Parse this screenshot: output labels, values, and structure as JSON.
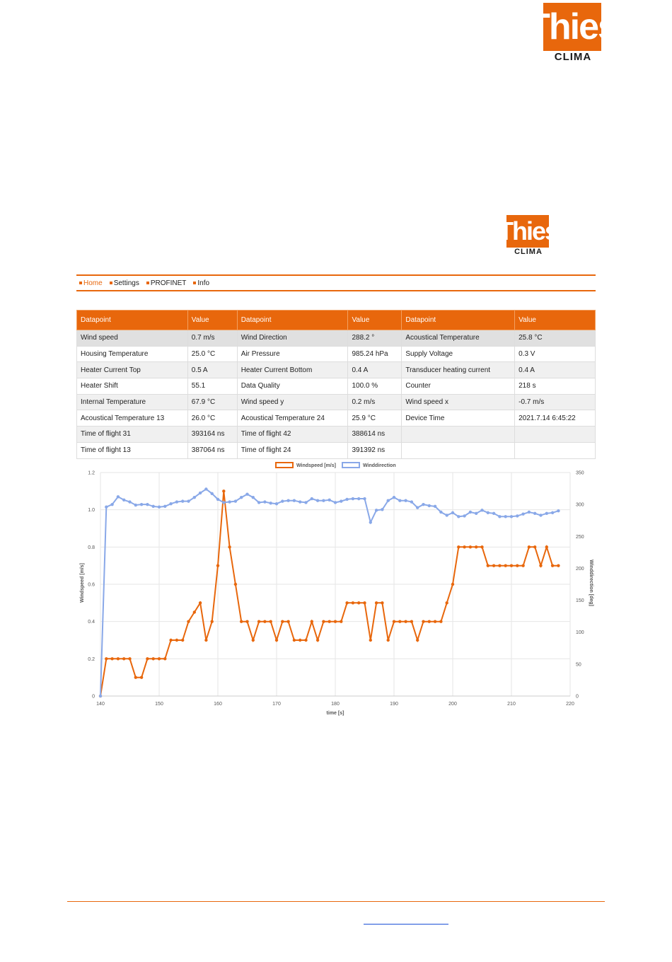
{
  "logo": {
    "brand": "Thies",
    "sub": "CLIMA"
  },
  "nav": [
    {
      "label": "Home",
      "active": true
    },
    {
      "label": "Settings",
      "active": false
    },
    {
      "label": "PROFINET",
      "active": false
    },
    {
      "label": "Info",
      "active": false
    }
  ],
  "table": {
    "headers": [
      "Datapoint",
      "Value",
      "Datapoint",
      "Value",
      "Datapoint",
      "Value"
    ],
    "rows": [
      [
        "Wind speed",
        "0.7 m/s",
        "Wind Direction",
        "288.2 °",
        "Acoustical Temperature",
        "25.8 °C"
      ],
      [
        "Housing Temperature",
        "25.0 °C",
        "Air Pressure",
        "985.24 hPa",
        "Supply Voltage",
        "0.3 V"
      ],
      [
        "Heater Current Top",
        "0.5 A",
        "Heater Current Bottom",
        "0.4 A",
        "Transducer heating current",
        "0.4 A"
      ],
      [
        "Heater Shift",
        "55.1",
        "Data Quality",
        "100.0 %",
        "Counter",
        "218 s"
      ],
      [
        "Internal Temperature",
        "67.9 °C",
        "Wind speed y",
        "0.2 m/s",
        "Wind speed x",
        "-0.7 m/s"
      ],
      [
        "Acoustical Temperature 13",
        "26.0 °C",
        "Acoustical Temperature 24",
        "25.9 °C",
        "Device Time",
        "2021.7.14 6:45:22"
      ],
      [
        "Time of flight 31",
        "393164 ns",
        "Time of flight 42",
        "388614 ns",
        "",
        ""
      ],
      [
        "Time of flight 13",
        "387064 ns",
        "Time of flight 24",
        "391392 ns",
        "",
        ""
      ]
    ]
  },
  "chart_data": {
    "type": "line",
    "xlabel": "time [s]",
    "ylabel": "Windspeed [m/s]",
    "y2label": "Winddirection [deg]",
    "xlim": [
      140,
      220
    ],
    "ylim": [
      0,
      1.2
    ],
    "y2lim": [
      0,
      350
    ],
    "xticks": [
      140,
      150,
      160,
      170,
      180,
      190,
      200,
      210,
      220
    ],
    "yticks": [
      0,
      0.2,
      0.4,
      0.6,
      0.8,
      1.0,
      1.2
    ],
    "ytick_labels": [
      "0",
      "0.2",
      "0.4",
      "0.6",
      "0.8",
      "1.0",
      "1.2"
    ],
    "y2ticks": [
      0,
      50,
      100,
      150,
      200,
      250,
      300,
      350
    ],
    "grid": true,
    "legend_position": "top",
    "x": [
      140,
      141,
      142,
      143,
      144,
      145,
      146,
      147,
      148,
      149,
      150,
      151,
      152,
      153,
      154,
      155,
      156,
      157,
      158,
      159,
      160,
      161,
      162,
      163,
      164,
      165,
      166,
      167,
      168,
      169,
      170,
      171,
      172,
      173,
      174,
      175,
      176,
      177,
      178,
      179,
      180,
      181,
      182,
      183,
      184,
      185,
      186,
      187,
      188,
      189,
      190,
      191,
      192,
      193,
      194,
      195,
      196,
      197,
      198,
      199,
      200,
      201,
      202,
      203,
      204,
      205,
      206,
      207,
      208,
      209,
      210,
      211,
      212,
      213,
      214,
      215,
      216,
      217,
      218
    ],
    "series": [
      {
        "name": "Windspeed [m/s]",
        "axis": "left",
        "color": "#e8670c",
        "values": [
          0,
          0.2,
          0.2,
          0.2,
          0.2,
          0.2,
          0.1,
          0.1,
          0.2,
          0.2,
          0.2,
          0.2,
          0.3,
          0.3,
          0.3,
          0.4,
          0.45,
          0.5,
          0.3,
          0.4,
          0.7,
          1.1,
          0.8,
          0.6,
          0.4,
          0.4,
          0.3,
          0.4,
          0.4,
          0.4,
          0.3,
          0.4,
          0.4,
          0.3,
          0.3,
          0.3,
          0.4,
          0.3,
          0.4,
          0.4,
          0.4,
          0.4,
          0.5,
          0.5,
          0.5,
          0.5,
          0.3,
          0.5,
          0.5,
          0.3,
          0.4,
          0.4,
          0.4,
          0.4,
          0.3,
          0.4,
          0.4,
          0.4,
          0.4,
          0.5,
          0.6,
          0.8,
          0.8,
          0.8,
          0.8,
          0.8,
          0.7,
          0.7,
          0.7,
          0.7,
          0.7,
          0.7,
          0.7,
          0.8,
          0.8,
          0.7,
          0.8,
          0.7,
          0.7
        ]
      },
      {
        "name": "Winddirection",
        "axis": "right",
        "color": "#89a8e8",
        "values": [
          0,
          296,
          300,
          312,
          307,
          304,
          299,
          300,
          300,
          297,
          296,
          297,
          301,
          304,
          305,
          305,
          311,
          318,
          324,
          317,
          308,
          303,
          304,
          305,
          311,
          316,
          311,
          303,
          304,
          302,
          301,
          305,
          306,
          306,
          304,
          303,
          309,
          306,
          306,
          307,
          303,
          305,
          308,
          309,
          309,
          309,
          272,
          291,
          292,
          306,
          311,
          306,
          306,
          304,
          295,
          300,
          298,
          297,
          288,
          283,
          287,
          281,
          282,
          288,
          286,
          291,
          287,
          286,
          281,
          281,
          281,
          282,
          285,
          288,
          286,
          283,
          286,
          287,
          290
        ]
      }
    ]
  }
}
